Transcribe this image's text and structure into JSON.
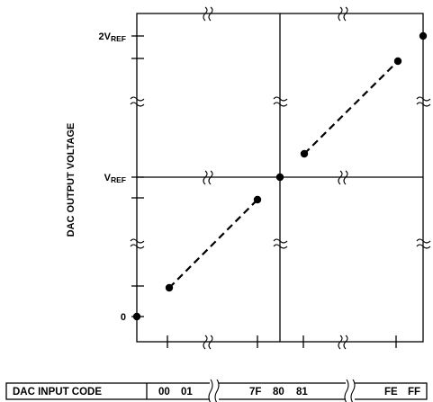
{
  "diagram": {
    "y_axis_label": "DAC OUTPUT VOLTAGE",
    "y_ticks": {
      "top": {
        "main": "2V",
        "sub": "REF"
      },
      "mid": {
        "main": "V",
        "sub": "REF"
      },
      "zero": "0"
    },
    "table": {
      "header": "DAC INPUT CODE",
      "codes": [
        "00",
        "01",
        "7F",
        "80",
        "81",
        "FE",
        "FF"
      ]
    }
  }
}
